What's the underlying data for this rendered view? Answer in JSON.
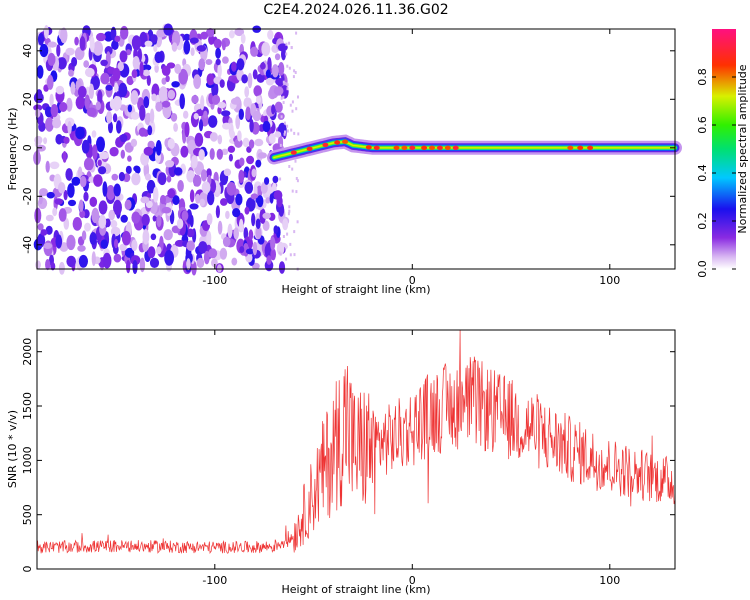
{
  "title": "C2E4.2024.026.11.36.G02",
  "chart_data": [
    {
      "type": "heatmap",
      "xlabel": "Height of straight line (km)",
      "ylabel": "Frequency (Hz)",
      "xlim": [
        -190,
        133
      ],
      "ylim": [
        -50,
        49
      ],
      "x_ticks": [
        -100,
        0,
        100
      ],
      "y_ticks": [
        -40,
        -20,
        0,
        20,
        40
      ],
      "grid": false,
      "colorbar": {
        "label": "Normalized spectral amplitude",
        "range": [
          0,
          1
        ],
        "ticks": [
          "0.0",
          "0.2",
          "0.4",
          "0.6",
          "0.8"
        ],
        "colormap": "white-violet-blue-cyan-green-yellow-red-magenta"
      },
      "regions": [
        {
          "x_range": [
            -190,
            -68
          ],
          "description_value": "broadband noise, amplitude ~0.05-0.25 across all frequencies"
        },
        {
          "x_range": [
            -68,
            133
          ],
          "signal_frequency_hz": 0,
          "peak_amplitude": 0.9
        }
      ],
      "signal_trace": {
        "x": [
          -70,
          -60,
          -50,
          -40,
          -34,
          -30,
          -20,
          0,
          20,
          60,
          100,
          133
        ],
        "frequency": [
          -4,
          -2,
          0,
          2,
          2.5,
          1,
          0,
          0,
          0,
          0,
          0,
          0
        ]
      }
    },
    {
      "type": "line",
      "xlabel": "Height of straight line (km)",
      "ylabel": "SNR (10 * v/v)",
      "xlim": [
        -190,
        133
      ],
      "ylim": [
        0,
        2200
      ],
      "x_ticks": [
        -100,
        0,
        100
      ],
      "y_ticks": [
        0,
        500,
        1000,
        1500,
        2000
      ],
      "grid": false,
      "color": "#ee3333",
      "series": [
        {
          "x": [
            -190,
            -150,
            -100,
            -80,
            -70,
            -60,
            -55,
            -50,
            -45,
            -40,
            -35,
            -33,
            -30,
            -25,
            -20,
            -10,
            0,
            10,
            20,
            30,
            40,
            60,
            80,
            100,
            120,
            133
          ],
          "values": [
            200,
            210,
            200,
            200,
            210,
            300,
            500,
            700,
            900,
            1100,
            1300,
            1400,
            1100,
            1100,
            1150,
            1200,
            1300,
            1450,
            1500,
            1550,
            1450,
            1300,
            1100,
            950,
            850,
            800
          ]
        }
      ]
    }
  ]
}
